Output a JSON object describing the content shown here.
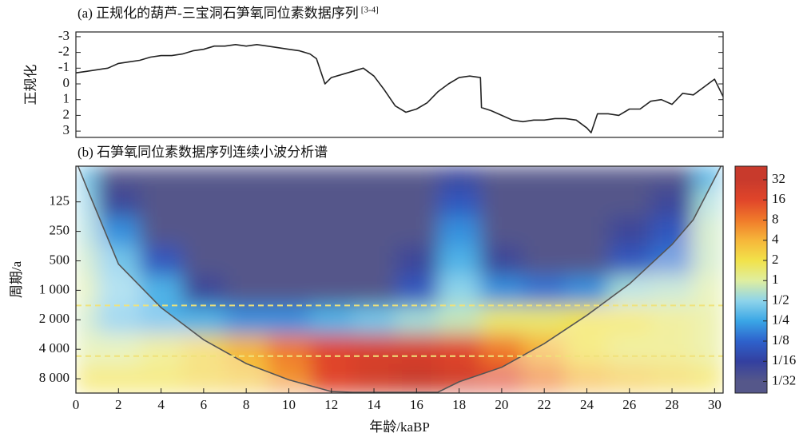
{
  "chart_data": [
    {
      "type": "line",
      "title": "(a) 正规化的葫芦-三宝洞石笋氧同位素数据序列",
      "title_ref": "[3-4]",
      "ylabel": "正规化",
      "x": [
        0,
        0.5,
        1,
        1.5,
        2,
        2.5,
        3,
        3.5,
        4,
        4.5,
        5,
        5.5,
        6,
        6.5,
        7,
        7.5,
        8,
        8.5,
        9,
        9.5,
        10,
        10.5,
        11,
        11.3,
        11.5,
        11.7,
        12,
        12.5,
        13,
        13.5,
        14,
        14.5,
        15,
        15.5,
        16,
        16.5,
        17,
        17.5,
        18,
        18.5,
        19,
        19.05,
        19.5,
        20,
        20.5,
        21,
        21.5,
        22,
        22.5,
        23,
        23.5,
        24,
        24.2,
        24.5,
        25,
        25.5,
        26,
        26.5,
        27,
        27.5,
        28,
        28.5,
        29,
        29.5,
        30,
        30.4
      ],
      "series": [
        {
          "color": "#222222",
          "values": [
            -0.7,
            -0.8,
            -0.9,
            -1.0,
            -1.3,
            -1.4,
            -1.5,
            -1.7,
            -1.8,
            -1.8,
            -1.9,
            -2.1,
            -2.2,
            -2.4,
            -2.4,
            -2.5,
            -2.4,
            -2.5,
            -2.4,
            -2.3,
            -2.2,
            -2.1,
            -1.9,
            -1.6,
            -0.8,
            0,
            -0.4,
            -0.6,
            -0.8,
            -1.0,
            -0.5,
            0.4,
            1.4,
            1.8,
            1.6,
            1.2,
            0.5,
            0,
            -0.4,
            -0.5,
            -0.4,
            1.5,
            1.7,
            2.0,
            2.3,
            2.4,
            2.3,
            2.3,
            2.2,
            2.2,
            2.3,
            2.8,
            3.1,
            1.9,
            1.9,
            2.0,
            1.6,
            1.6,
            1.1,
            1.0,
            1.3,
            0.6,
            0.7,
            0.2,
            -0.3,
            0.8
          ]
        }
      ],
      "xlim": [
        0,
        30.4
      ],
      "ylim": [
        -3.3,
        3.4
      ],
      "y_inverted": true,
      "yticks": [
        -3,
        -2,
        -1,
        0,
        1,
        2,
        3
      ]
    },
    {
      "type": "heatmap",
      "title": "(b) 石笋氧同位素数据序列连续小波分析谱",
      "xlabel": "年龄/kaBP",
      "ylabel": "周期/a",
      "xlim": [
        0,
        30.4
      ],
      "xticks": [
        0,
        2,
        4,
        6,
        8,
        10,
        12,
        14,
        16,
        18,
        20,
        22,
        24,
        26,
        28,
        30
      ],
      "ylim": [
        54,
        11200
      ],
      "y_log": true,
      "y_inverted": true,
      "yticks": [
        125,
        250,
        500,
        {
          "value": 1000,
          "label": "1 000"
        },
        {
          "value": 2000,
          "label": "2 000"
        },
        {
          "value": 4000,
          "label": "4 000"
        },
        {
          "value": 8000,
          "label": "8 000"
        }
      ],
      "x": [
        0,
        2,
        4,
        6,
        8,
        10,
        12,
        14,
        16,
        18,
        20,
        22,
        24,
        26,
        28,
        30
      ],
      "y": [
        64,
        125,
        250,
        500,
        1000,
        2000,
        4000,
        8000
      ],
      "z": [
        [
          0.4,
          0.03,
          0.03,
          0.03,
          0.03,
          0.03,
          0.03,
          0.03,
          0.03,
          0.05,
          0.03,
          0.03,
          0.03,
          0.03,
          0.03,
          0.3
        ],
        [
          0.5,
          0.05,
          0.03,
          0.03,
          0.03,
          0.03,
          0.03,
          0.03,
          0.03,
          0.1,
          0.03,
          0.03,
          0.03,
          0.03,
          0.05,
          0.6
        ],
        [
          0.6,
          0.2,
          0.03,
          0.03,
          0.03,
          0.03,
          0.03,
          0.03,
          0.03,
          0.2,
          0.03,
          0.03,
          0.03,
          0.05,
          0.1,
          0.8
        ],
        [
          0.8,
          0.4,
          0.1,
          0.03,
          0.03,
          0.03,
          0.03,
          0.03,
          0.05,
          0.3,
          0.05,
          0.03,
          0.03,
          0.1,
          0.15,
          0.8
        ],
        [
          1,
          0.5,
          0.3,
          0.05,
          0.03,
          0.03,
          0.03,
          0.03,
          0.1,
          0.5,
          0.2,
          0.15,
          0.2,
          0.6,
          0.7,
          1
        ],
        [
          0.8,
          0.4,
          0.3,
          0.3,
          0.2,
          0.2,
          0.3,
          0.4,
          0.6,
          0.8,
          1.5,
          1.5,
          2,
          2,
          1.5,
          1.2
        ],
        [
          1,
          1,
          1.5,
          2.5,
          4,
          8,
          16,
          20,
          20,
          16,
          8,
          4,
          2,
          1.5,
          1.5,
          1.2
        ],
        [
          2,
          2,
          2,
          2.5,
          3,
          6,
          16,
          24,
          32,
          24,
          16,
          8,
          4,
          3,
          2.5,
          2
        ]
      ],
      "clim": [
        0.021,
        51
      ],
      "cticks": [
        32,
        16,
        8,
        4,
        2,
        1,
        {
          "value": 0.5,
          "label": "1/2"
        },
        {
          "value": 0.25,
          "label": "1/4"
        },
        {
          "value": 0.125,
          "label": "1/8"
        },
        {
          "value": 0.0625,
          "label": "1/16"
        },
        {
          "value": 0.03125,
          "label": "1/32"
        }
      ],
      "colormap": [
        "#c83a2c",
        "#e0452a",
        "#f07a2a",
        "#f6b63a",
        "#f2e24a",
        "#dfeea0",
        "#8ed4ea",
        "#3aa6e6",
        "#2e62cc",
        "#3340a0",
        "#55578a"
      ],
      "cone": {
        "x": [
          0.1,
          0.6,
          2,
          4,
          6,
          8,
          10,
          12,
          13,
          17,
          18,
          20,
          22,
          24,
          26,
          28,
          29,
          30.3
        ],
        "y": [
          54,
          100,
          540,
          1500,
          3200,
          5600,
          8200,
          10800,
          11000,
          11000,
          8600,
          6100,
          3500,
          1800,
          860,
          340,
          190,
          54
        ]
      },
      "reference_lines": [
        {
          "value": 1430,
          "color": "#f0e27a"
        },
        {
          "value": 4700,
          "color": "#f0e27a"
        }
      ]
    }
  ]
}
